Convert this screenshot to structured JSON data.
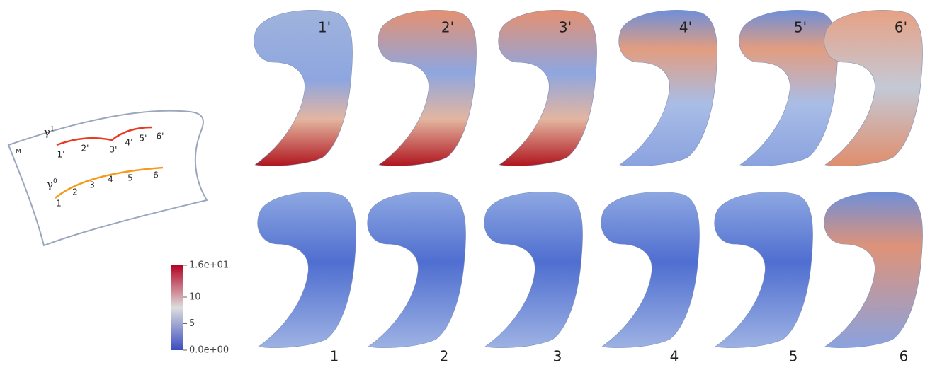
{
  "manifold": {
    "label": "M",
    "curves": [
      {
        "label": "γ",
        "sup": "1",
        "points": [
          "1'",
          "2'",
          "3'",
          "4'",
          "5'",
          "6'"
        ]
      },
      {
        "label": "γ",
        "sup": "0",
        "points": [
          "1",
          "2",
          "3",
          "4",
          "5",
          "6"
        ]
      }
    ]
  },
  "colorbar": {
    "lim": [
      0,
      16
    ],
    "ticks": [
      {
        "value": 16,
        "label": "1.6e+01"
      },
      10,
      5,
      {
        "value": 0,
        "label": "0.0e+00"
      }
    ]
  },
  "shapes": {
    "top": [
      "1'",
      "2'",
      "3'",
      "4'",
      "5'",
      "6'"
    ],
    "bottom": [
      "1",
      "2",
      "3",
      "4",
      "5",
      "6"
    ]
  }
}
